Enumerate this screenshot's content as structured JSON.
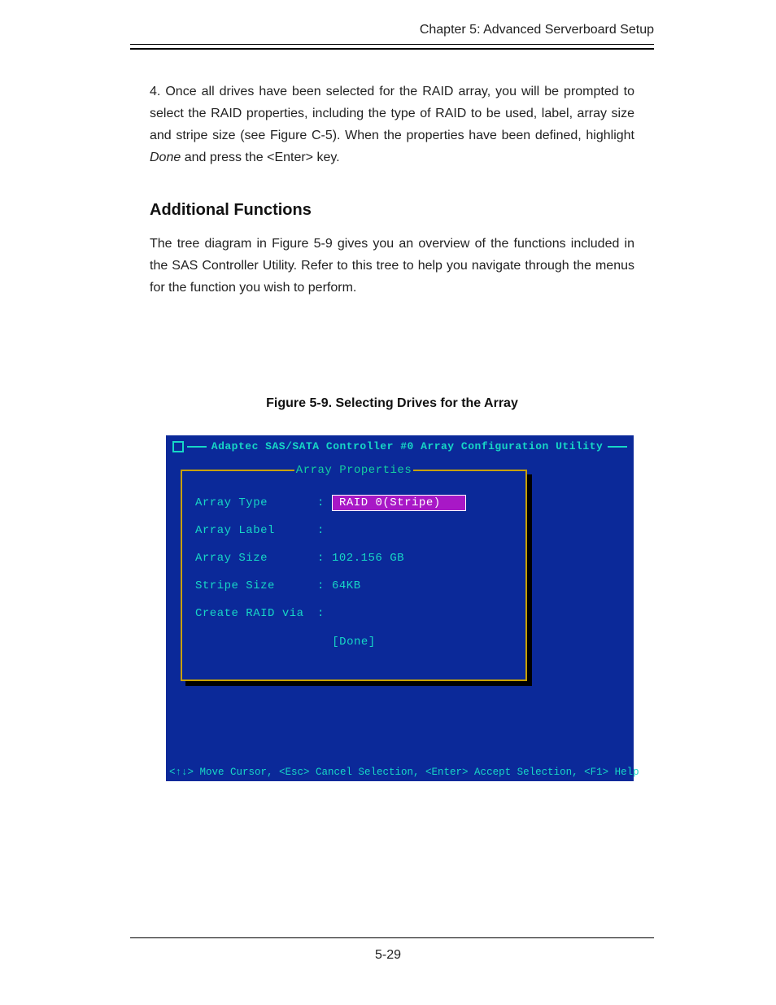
{
  "header": {
    "chapter": "Chapter 5: Advanced Serverboard Setup"
  },
  "step4": {
    "prefix": "4. Once all drives have been selected for the RAID array, you will be prompted to select the RAID properties, including the type of RAID to be used, label, array size and stripe size (see Figure C-5).  When the properties have been defined, highlight ",
    "italic": "Done",
    "suffix": " and press the <Enter> key."
  },
  "section": {
    "heading": "Additional Functions",
    "paragraph": "The tree diagram in Figure 5-9 gives you an overview of the functions included in the SAS Controller Utility.  Refer to this tree to help you navigate through the menus for the function you wish to perform."
  },
  "figure": {
    "caption": "Figure 5-9. Selecting Drives for the Array"
  },
  "bios": {
    "title": "Adaptec SAS/SATA Controller #0 Array Configuration Utility",
    "panel_title": "Array Properties",
    "rows": {
      "type_label": "Array Type",
      "type_value": "RAID 0(Stripe)",
      "label_label": "Array Label",
      "label_value": "",
      "size_label": "Array Size",
      "size_value": "102.156 GB",
      "stripe_label": "Stripe Size",
      "stripe_value": "64KB",
      "create_label": "Create RAID via",
      "create_value": ""
    },
    "done": "[Done]",
    "footer": "<↑↓> Move Cursor, <Esc> Cancel Selection, <Enter> Accept Selection, <F1> Help",
    "colors": {
      "background": "#0b2999",
      "accent": "#17d7c6",
      "panel_border": "#c8a000",
      "highlight_bg": "#a818c6",
      "highlight_fg": "#ffffff"
    }
  },
  "page_number": "5-29"
}
